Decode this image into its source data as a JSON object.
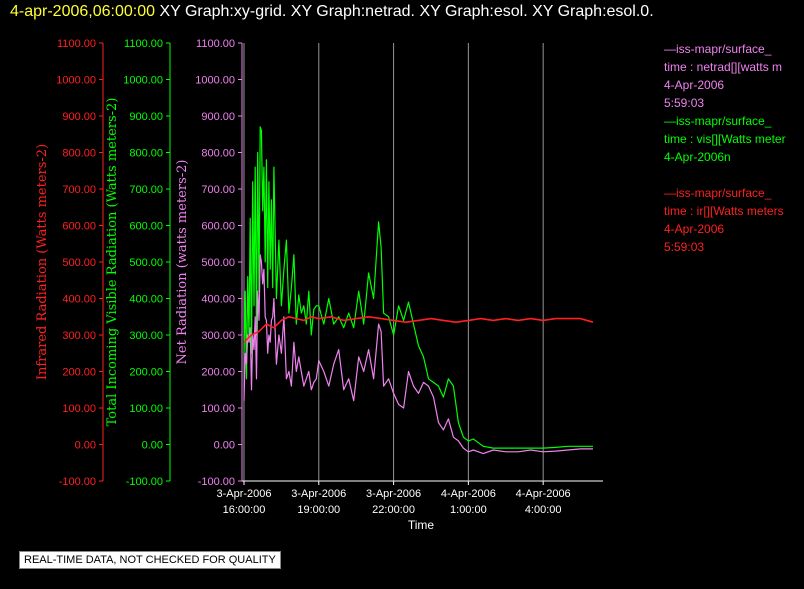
{
  "header": {
    "timestamp": "4-apr-2006,06:00:00",
    "titles": "XY Graph:xy-grid.  XY Graph:netrad.  XY Graph:esol.  XY Graph:esol.0."
  },
  "notice": "REAL-TIME DATA, NOT CHECKED FOR QUALITY",
  "legend": [
    {
      "line1": "—iss-mapr/surface_",
      "line2": "time : netrad[][watts m",
      "line3": "4-Apr-2006",
      "line4": "5:59:03",
      "color": "#ee82ee"
    },
    {
      "line1": "—iss-mapr/surface_",
      "line2": "time : vis[][Watts meter",
      "line3": "4-Apr-2006n",
      "line4": "",
      "color": "#00ff00"
    },
    {
      "line1": "—iss-mapr/surface_",
      "line2": "time : ir[][Watts meters",
      "line3": "4-Apr-2006",
      "line4": "5:59:03",
      "color": "#ff2020"
    }
  ],
  "chart_data": {
    "type": "line",
    "xlabel": "Time",
    "x_ticks": [
      {
        "line1": "3-Apr-2006",
        "line2": "16:00:00",
        "hours": 0
      },
      {
        "line1": "3-Apr-2006",
        "line2": "19:00:00",
        "hours": 3
      },
      {
        "line1": "3-Apr-2006",
        "line2": "22:00:00",
        "hours": 6
      },
      {
        "line1": "4-Apr-2006",
        "line2": "1:00:00",
        "hours": 9
      },
      {
        "line1": "4-Apr-2006",
        "line2": "4:00:00",
        "hours": 12
      }
    ],
    "xlim_hours": [
      -0.08,
      14.4
    ],
    "ylim": [
      -100,
      1100
    ],
    "y_ticks": [
      "-100.00",
      "0.00",
      "100.00",
      "200.00",
      "300.00",
      "400.00",
      "500.00",
      "600.00",
      "700.00",
      "800.00",
      "900.00",
      "1000.00",
      "1100.00"
    ],
    "axes": [
      {
        "label": "Infrared Radiation (Watts meters-2)",
        "color": "#ff2020"
      },
      {
        "label": "Total Incoming Visible Radiation (Watts meters-2)",
        "color": "#00ff00"
      },
      {
        "label": "Net Radiation (watts meters-2)",
        "color": "#ee82ee"
      }
    ],
    "grid": "vertical",
    "series": [
      {
        "color": "#00ff00",
        "x": [
          0.0,
          0.05,
          0.1,
          0.15,
          0.2,
          0.25,
          0.3,
          0.35,
          0.4,
          0.45,
          0.5,
          0.55,
          0.6,
          0.65,
          0.7,
          0.75,
          0.8,
          0.85,
          0.9,
          0.95,
          1.0,
          1.05,
          1.1,
          1.15,
          1.2,
          1.3,
          1.4,
          1.5,
          1.6,
          1.7,
          1.8,
          1.9,
          2.0,
          2.1,
          2.2,
          2.3,
          2.4,
          2.5,
          2.6,
          2.7,
          2.8,
          2.9,
          3.0,
          3.2,
          3.4,
          3.6,
          3.8,
          4.0,
          4.2,
          4.4,
          4.6,
          4.8,
          5.0,
          5.2,
          5.4,
          5.5,
          5.6,
          5.8,
          6.0,
          6.2,
          6.4,
          6.6,
          6.8,
          7.0,
          7.2,
          7.4,
          7.6,
          7.8,
          8.0,
          8.2,
          8.4,
          8.6,
          8.8,
          9.0,
          9.2,
          9.4,
          9.6,
          10.0,
          10.5,
          11.0,
          11.5,
          12.0,
          12.5,
          13.0,
          13.5,
          14.0
        ],
        "y": [
          250,
          420,
          180,
          460,
          300,
          620,
          250,
          720,
          380,
          760,
          300,
          800,
          420,
          870,
          860,
          640,
          760,
          500,
          780,
          430,
          720,
          480,
          670,
          430,
          760,
          400,
          560,
          380,
          480,
          560,
          360,
          430,
          520,
          330,
          410,
          360,
          380,
          330,
          420,
          300,
          370,
          380,
          380,
          330,
          400,
          330,
          350,
          320,
          360,
          320,
          420,
          330,
          470,
          400,
          610,
          540,
          360,
          350,
          300,
          380,
          340,
          390,
          330,
          270,
          240,
          180,
          170,
          160,
          130,
          180,
          160,
          60,
          20,
          10,
          15,
          5,
          -5,
          -10,
          -10,
          -10,
          -10,
          -10,
          -8,
          -5,
          -5,
          -5
        ]
      },
      {
        "color": "#ee82ee",
        "x": [
          0.0,
          0.05,
          0.1,
          0.15,
          0.2,
          0.25,
          0.3,
          0.35,
          0.4,
          0.45,
          0.5,
          0.55,
          0.6,
          0.65,
          0.7,
          0.75,
          0.8,
          0.85,
          0.9,
          0.95,
          1.0,
          1.05,
          1.1,
          1.15,
          1.2,
          1.3,
          1.4,
          1.5,
          1.6,
          1.7,
          1.8,
          1.9,
          2.0,
          2.1,
          2.2,
          2.3,
          2.4,
          2.5,
          2.6,
          2.7,
          2.8,
          2.9,
          3.0,
          3.2,
          3.4,
          3.6,
          3.8,
          4.0,
          4.2,
          4.4,
          4.6,
          4.8,
          5.0,
          5.2,
          5.4,
          5.5,
          5.6,
          5.8,
          6.0,
          6.2,
          6.4,
          6.6,
          6.8,
          7.0,
          7.2,
          7.4,
          7.6,
          7.8,
          8.0,
          8.2,
          8.4,
          8.6,
          8.8,
          9.0,
          9.2,
          9.4,
          9.6,
          10.0,
          10.5,
          11.0,
          11.5,
          12.0,
          12.5,
          13.0,
          13.5,
          14.0
        ],
        "y": [
          120,
          250,
          220,
          300,
          280,
          320,
          150,
          300,
          260,
          350,
          180,
          420,
          340,
          520,
          500,
          440,
          480,
          350,
          340,
          250,
          300,
          280,
          340,
          350,
          400,
          220,
          300,
          250,
          350,
          180,
          200,
          160,
          280,
          200,
          240,
          200,
          160,
          180,
          200,
          150,
          170,
          180,
          230,
          200,
          160,
          220,
          260,
          150,
          180,
          120,
          240,
          200,
          260,
          180,
          330,
          310,
          160,
          180,
          140,
          110,
          100,
          200,
          160,
          140,
          170,
          160,
          130,
          60,
          40,
          70,
          20,
          10,
          -10,
          -20,
          -15,
          -20,
          -25,
          -15,
          -20,
          -20,
          -15,
          -20,
          -18,
          -15,
          -12,
          -12
        ]
      },
      {
        "color": "#ff2020",
        "x": [
          0.0,
          0.3,
          0.6,
          0.9,
          1.2,
          1.5,
          1.8,
          2.1,
          2.4,
          2.7,
          3.0,
          3.5,
          4.0,
          4.5,
          5.0,
          5.5,
          6.0,
          6.5,
          7.0,
          7.5,
          8.0,
          8.5,
          9.0,
          9.5,
          10.0,
          10.5,
          11.0,
          11.5,
          12.0,
          12.5,
          13.0,
          13.5,
          14.0
        ],
        "y": [
          280,
          300,
          310,
          330,
          320,
          340,
          350,
          345,
          340,
          350,
          345,
          350,
          340,
          345,
          350,
          345,
          340,
          335,
          340,
          345,
          340,
          335,
          340,
          345,
          340,
          345,
          340,
          345,
          340,
          345,
          345,
          345,
          335
        ]
      }
    ]
  }
}
